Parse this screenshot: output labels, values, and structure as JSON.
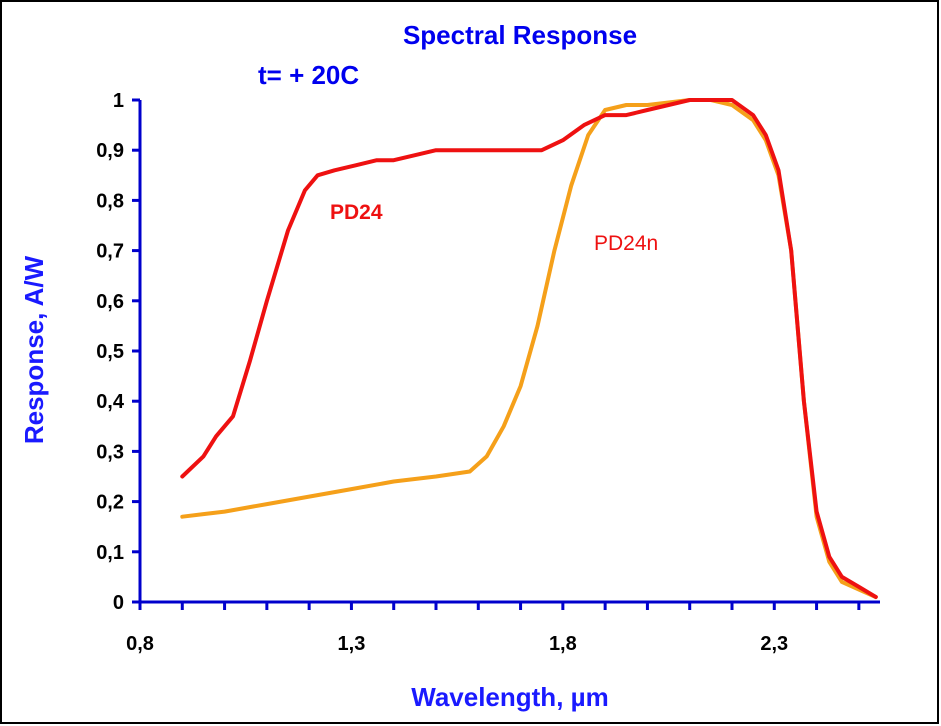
{
  "chart_data": {
    "type": "line",
    "title": "Spectral Response",
    "subtitle": "t= + 20C",
    "xlabel": "Wavelength, µm",
    "ylabel": "Response, A/W",
    "xlim": [
      0.8,
      2.55
    ],
    "ylim": [
      0,
      1
    ],
    "x_ticks": [
      "0,8",
      "1,3",
      "1,8",
      "2,3"
    ],
    "x_tick_values": [
      0.8,
      1.3,
      1.8,
      2.3
    ],
    "y_ticks": [
      "0",
      "0,1",
      "0,2",
      "0,3",
      "0,4",
      "0,5",
      "0,6",
      "0,7",
      "0,8",
      "0,9",
      "1"
    ],
    "y_tick_values": [
      0,
      0.1,
      0.2,
      0.3,
      0.4,
      0.5,
      0.6,
      0.7,
      0.8,
      0.9,
      1.0
    ],
    "grid": false,
    "series": [
      {
        "name": "PD24",
        "color": "#ee1111",
        "label_style": "bold",
        "points": [
          [
            0.9,
            0.25
          ],
          [
            0.95,
            0.29
          ],
          [
            0.98,
            0.33
          ],
          [
            1.02,
            0.37
          ],
          [
            1.06,
            0.48
          ],
          [
            1.1,
            0.6
          ],
          [
            1.15,
            0.74
          ],
          [
            1.19,
            0.82
          ],
          [
            1.22,
            0.85
          ],
          [
            1.26,
            0.86
          ],
          [
            1.31,
            0.87
          ],
          [
            1.36,
            0.88
          ],
          [
            1.4,
            0.88
          ],
          [
            1.45,
            0.89
          ],
          [
            1.5,
            0.9
          ],
          [
            1.6,
            0.9
          ],
          [
            1.7,
            0.9
          ],
          [
            1.75,
            0.9
          ],
          [
            1.8,
            0.92
          ],
          [
            1.85,
            0.95
          ],
          [
            1.9,
            0.97
          ],
          [
            1.95,
            0.97
          ],
          [
            2.0,
            0.98
          ],
          [
            2.05,
            0.99
          ],
          [
            2.1,
            1.0
          ],
          [
            2.15,
            1.0
          ],
          [
            2.2,
            1.0
          ],
          [
            2.25,
            0.97
          ],
          [
            2.28,
            0.93
          ],
          [
            2.31,
            0.86
          ],
          [
            2.34,
            0.7
          ],
          [
            2.37,
            0.4
          ],
          [
            2.4,
            0.18
          ],
          [
            2.43,
            0.09
          ],
          [
            2.46,
            0.05
          ],
          [
            2.5,
            0.03
          ],
          [
            2.54,
            0.01
          ]
        ]
      },
      {
        "name": "PD24n",
        "color": "#f5a01a",
        "label_style": "normal",
        "label_color": "#ee1111",
        "points": [
          [
            0.9,
            0.17
          ],
          [
            0.95,
            0.175
          ],
          [
            1.0,
            0.18
          ],
          [
            1.1,
            0.195
          ],
          [
            1.2,
            0.21
          ],
          [
            1.3,
            0.225
          ],
          [
            1.4,
            0.24
          ],
          [
            1.5,
            0.25
          ],
          [
            1.58,
            0.26
          ],
          [
            1.62,
            0.29
          ],
          [
            1.66,
            0.35
          ],
          [
            1.7,
            0.43
          ],
          [
            1.74,
            0.55
          ],
          [
            1.78,
            0.7
          ],
          [
            1.82,
            0.83
          ],
          [
            1.86,
            0.93
          ],
          [
            1.9,
            0.98
          ],
          [
            1.95,
            0.99
          ],
          [
            2.0,
            0.99
          ],
          [
            2.05,
            0.995
          ],
          [
            2.1,
            1.0
          ],
          [
            2.15,
            1.0
          ],
          [
            2.2,
            0.99
          ],
          [
            2.25,
            0.96
          ],
          [
            2.28,
            0.92
          ],
          [
            2.31,
            0.85
          ],
          [
            2.34,
            0.7
          ],
          [
            2.37,
            0.4
          ],
          [
            2.4,
            0.17
          ],
          [
            2.43,
            0.08
          ],
          [
            2.46,
            0.04
          ],
          [
            2.5,
            0.025
          ],
          [
            2.54,
            0.01
          ]
        ]
      }
    ]
  }
}
